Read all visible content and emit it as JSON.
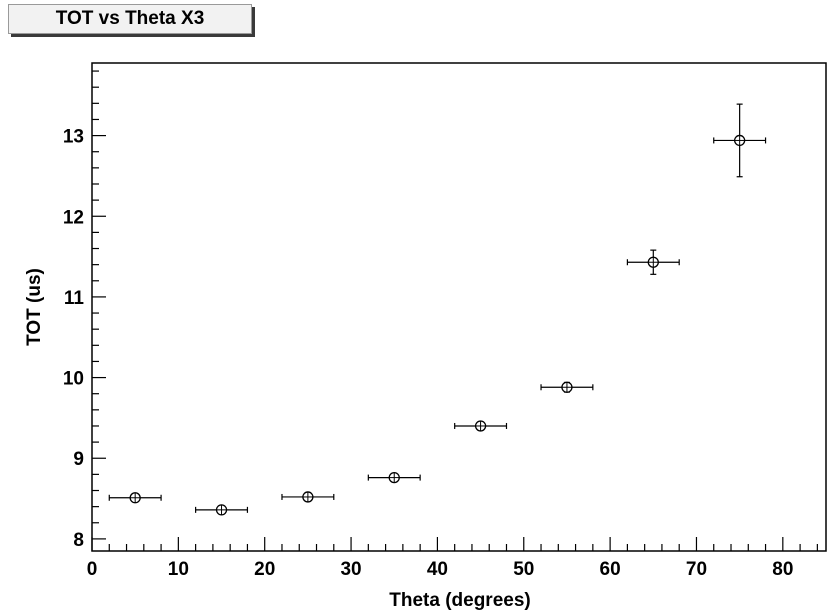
{
  "chart_data": {
    "type": "scatter",
    "title": "TOT vs Theta X3",
    "xlabel": "Theta (degrees)",
    "ylabel": "TOT (us)",
    "xlim": [
      0,
      85
    ],
    "ylim": [
      7.85,
      13.9
    ],
    "x_ticks": [
      0,
      10,
      20,
      30,
      40,
      50,
      60,
      70,
      80
    ],
    "y_ticks": [
      8,
      9,
      10,
      11,
      12,
      13
    ],
    "grid": false,
    "marker": "open-circle",
    "color": "#000000",
    "points": [
      {
        "x": 5,
        "y": 8.51,
        "xerr": 3,
        "yerr": 0.03
      },
      {
        "x": 15,
        "y": 8.36,
        "xerr": 3,
        "yerr": 0.03
      },
      {
        "x": 25,
        "y": 8.52,
        "xerr": 3,
        "yerr": 0.03
      },
      {
        "x": 35,
        "y": 8.76,
        "xerr": 3,
        "yerr": 0.04
      },
      {
        "x": 45,
        "y": 9.4,
        "xerr": 3,
        "yerr": 0.04
      },
      {
        "x": 55,
        "y": 9.88,
        "xerr": 3,
        "yerr": 0.06
      },
      {
        "x": 65,
        "y": 11.43,
        "xerr": 3,
        "yerr": 0.15
      },
      {
        "x": 75,
        "y": 12.94,
        "xerr": 3,
        "yerr": 0.45
      }
    ]
  }
}
